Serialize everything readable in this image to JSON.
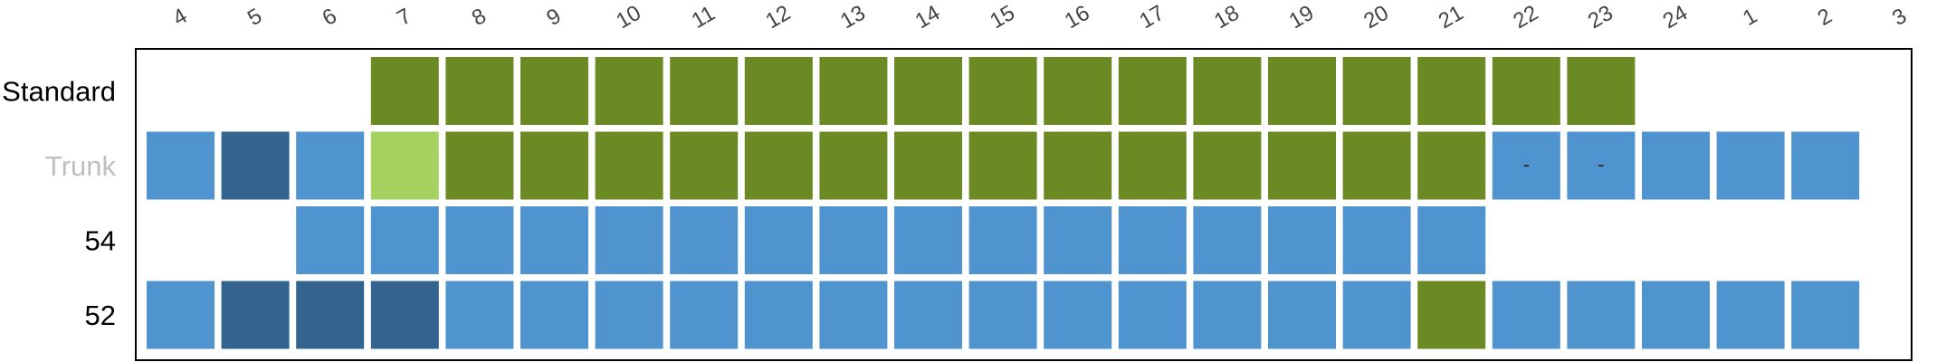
{
  "chart_data": {
    "type": "heatmap",
    "columns": [
      "4",
      "5",
      "6",
      "7",
      "8",
      "9",
      "10",
      "11",
      "12",
      "13",
      "14",
      "15",
      "16",
      "17",
      "18",
      "19",
      "20",
      "21",
      "22",
      "23",
      "24",
      "1",
      "2",
      "3"
    ],
    "rows": [
      {
        "label": "Standard",
        "label_color": "#000000",
        "cells": [
          null,
          null,
          null,
          "olive",
          "olive",
          "olive",
          "olive",
          "olive",
          "olive",
          "olive",
          "olive",
          "olive",
          "olive",
          "olive",
          "olive",
          "olive",
          "olive",
          "olive",
          "olive",
          "olive",
          null,
          null,
          null,
          null
        ]
      },
      {
        "label": "Trunk",
        "label_color": "#bfbfbf",
        "cells": [
          "blue",
          "navy",
          "blue",
          "lightgreen",
          "olive",
          "olive",
          "olive",
          "olive",
          "olive",
          "olive",
          "olive",
          "olive",
          "olive",
          "olive",
          "olive",
          "olive",
          "olive",
          "olive",
          "blue",
          "blue",
          "blue",
          "blue",
          "blue",
          null
        ],
        "cell_text": [
          "",
          "",
          "",
          "",
          "",
          "",
          "",
          "",
          "",
          "",
          "",
          "",
          "",
          "",
          "",
          "",
          "",
          "",
          "-",
          "-",
          "",
          "",
          "",
          ""
        ]
      },
      {
        "label": "54",
        "label_color": "#000000",
        "cells": [
          null,
          null,
          "blue",
          "blue",
          "blue",
          "blue",
          "blue",
          "blue",
          "blue",
          "blue",
          "blue",
          "blue",
          "blue",
          "blue",
          "blue",
          "blue",
          "blue",
          "blue",
          null,
          null,
          null,
          null,
          null,
          null
        ]
      },
      {
        "label": "52",
        "label_color": "#000000",
        "cells": [
          "blue",
          "navy",
          "navy",
          "navy",
          "blue",
          "blue",
          "blue",
          "blue",
          "blue",
          "blue",
          "blue",
          "blue",
          "blue",
          "blue",
          "blue",
          "blue",
          "blue",
          "olive",
          "blue",
          "blue",
          "blue",
          "blue",
          "blue",
          null
        ]
      }
    ],
    "colors": {
      "olive": "#6b8a23",
      "lightgreen": "#a4d160",
      "blue": "#4f94cf",
      "navy": "#33648f"
    },
    "frame_color": "#000000",
    "grid": false,
    "legend": "none"
  }
}
